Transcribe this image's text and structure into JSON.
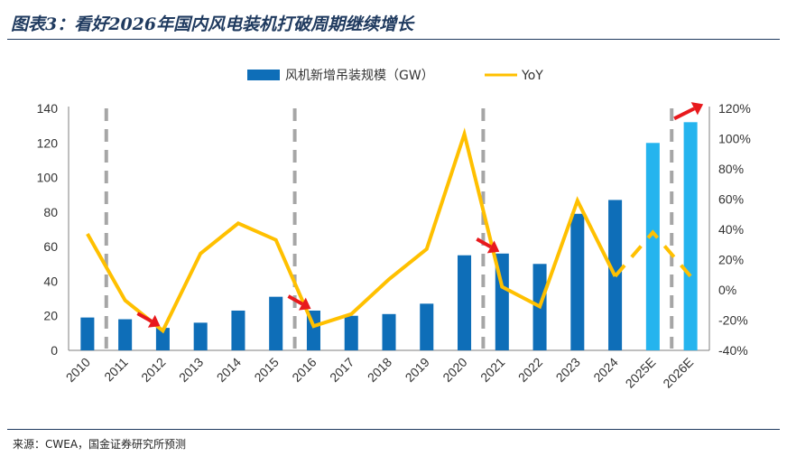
{
  "header": {
    "title": "图表3：看好2026年国内风电装机打破周期继续增长"
  },
  "footer": {
    "source": "来源：CWEA，国金证券研究所预测"
  },
  "colors": {
    "bar_actual": "#0e6eb8",
    "bar_forecast": "#25b4ee",
    "line": "#ffc000",
    "divider": "#a6a6a6",
    "arrow": "#e8191d"
  },
  "chart_data": {
    "type": "bar",
    "title": "",
    "categories": [
      "2010",
      "2011",
      "2012",
      "2013",
      "2014",
      "2015",
      "2016",
      "2017",
      "2018",
      "2019",
      "2020",
      "2021",
      "2022",
      "2023",
      "2024",
      "2025E",
      "2026E"
    ],
    "forecast_categories": [
      "2025E",
      "2026E"
    ],
    "series": [
      {
        "name": "风机新增吊装规模（GW）",
        "axis": "left",
        "type": "bar",
        "values": [
          19,
          18,
          13,
          16,
          23,
          31,
          23,
          20,
          21,
          27,
          55,
          56,
          50,
          79,
          87,
          120,
          132
        ]
      },
      {
        "name": "YoY",
        "axis": "right",
        "type": "line",
        "values": [
          37,
          -7,
          -27,
          24,
          44,
          33,
          -24,
          -16,
          7,
          27,
          103,
          2,
          -11,
          59,
          9,
          38,
          9
        ]
      }
    ],
    "y_left": {
      "lim": [
        0,
        140
      ],
      "ticks": [
        "0",
        "20",
        "40",
        "60",
        "80",
        "100",
        "120",
        "140"
      ]
    },
    "y_right": {
      "lim": [
        -40,
        120
      ],
      "ticks": [
        "-40%",
        "-20%",
        "0%",
        "20%",
        "40%",
        "60%",
        "80%",
        "100%",
        "120%"
      ]
    },
    "cycle_dividers_between": [
      "2010|2011",
      "2015|2016",
      "2020|2021",
      "2025E|2026E"
    ],
    "down_arrows_at": [
      "2012",
      "2016",
      "2021"
    ],
    "up_arrow_at": "2026E",
    "legend": {
      "position": "top",
      "entries": [
        "风机新增吊装规模（GW）",
        "YoY"
      ]
    }
  }
}
